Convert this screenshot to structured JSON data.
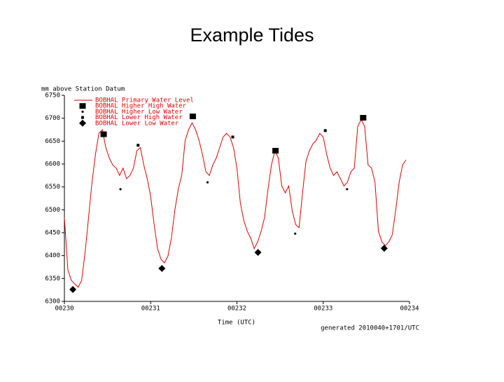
{
  "chart_data": {
    "type": "line",
    "title": "Example Tides",
    "ylabel": "mm above Station Datum",
    "xlabel": "Time (UTC)",
    "annotation": "generated 2010040+1701/UTC",
    "xlim": [
      230,
      234
    ],
    "xticks": [
      {
        "value": 230,
        "label": "00230"
      },
      {
        "value": 231,
        "label": "00231"
      },
      {
        "value": 232,
        "label": "00232"
      },
      {
        "value": 233,
        "label": "00233"
      },
      {
        "value": 234,
        "label": "00234"
      }
    ],
    "ylim": [
      6300,
      6750
    ],
    "yticks": [
      6300,
      6350,
      6400,
      6450,
      6500,
      6550,
      6600,
      6650,
      6700,
      6750
    ],
    "legend": "upper left",
    "series": [
      {
        "name": "BOBHAL Primary Water Level",
        "color": "#e00000",
        "marker": "line",
        "x": [
          230,
          230.04,
          230.08,
          230.12,
          230.16,
          230.2,
          230.24,
          230.28,
          230.32,
          230.36,
          230.4,
          230.44,
          230.48,
          230.52,
          230.56,
          230.6,
          230.64,
          230.68,
          230.72,
          230.76,
          230.8,
          230.84,
          230.88,
          230.92,
          230.96,
          231,
          231.04,
          231.08,
          231.12,
          231.16,
          231.2,
          231.24,
          231.28,
          231.32,
          231.36,
          231.4,
          231.44,
          231.48,
          231.52,
          231.56,
          231.6,
          231.64,
          231.68,
          231.72,
          231.76,
          231.8,
          231.84,
          231.88,
          231.92,
          231.96,
          232,
          232.04,
          232.08,
          232.12,
          232.16,
          232.2,
          232.24,
          232.28,
          232.32,
          232.36,
          232.4,
          232.44,
          232.48,
          232.52,
          232.56,
          232.6,
          232.64,
          232.68,
          232.72,
          232.76,
          232.8,
          232.84,
          232.88,
          232.92,
          232.96,
          233,
          233.04,
          233.08,
          233.12,
          233.16,
          233.2,
          233.24,
          233.28,
          233.32,
          233.36,
          233.4,
          233.44,
          233.48,
          233.52,
          233.56,
          233.6,
          233.64,
          233.68,
          233.72,
          233.76,
          233.8,
          233.84,
          233.88,
          233.92,
          233.96
        ],
        "values": [
          6483,
          6369,
          6346,
          6338,
          6331,
          6346,
          6407,
          6483,
          6560,
          6621,
          6667,
          6675,
          6636,
          6613,
          6598,
          6591,
          6575,
          6591,
          6568,
          6575,
          6591,
          6629,
          6636,
          6598,
          6568,
          6529,
          6468,
          6415,
          6392,
          6384,
          6399,
          6438,
          6499,
          6545,
          6575,
          6652,
          6675,
          6690,
          6675,
          6652,
          6621,
          6583,
          6575,
          6598,
          6613,
          6636,
          6659,
          6667,
          6659,
          6636,
          6591,
          6514,
          6476,
          6453,
          6438,
          6415,
          6430,
          6453,
          6483,
          6545,
          6598,
          6629,
          6613,
          6552,
          6537,
          6552,
          6499,
          6468,
          6461,
          6537,
          6606,
          6629,
          6644,
          6652,
          6667,
          6659,
          6621,
          6591,
          6575,
          6583,
          6568,
          6552,
          6560,
          6583,
          6591,
          6682,
          6697,
          6682,
          6598,
          6591,
          6560,
          6453,
          6430,
          6422,
          6430,
          6445,
          6499,
          6560,
          6598,
          6609
        ]
      },
      {
        "name": "BOBHAL Higher High Water",
        "color": "#000000",
        "marker": "square",
        "x": [
          230.455,
          231.488,
          232.447,
          233.463
        ],
        "values": [
          6665,
          6704,
          6629,
          6701
        ]
      },
      {
        "name": "BOBHAL Higher Low Water",
        "color": "#000000",
        "marker": "dot",
        "x": [
          230.65,
          231.659,
          232.675,
          233.276
        ],
        "values": [
          6545,
          6560,
          6448,
          6545
        ]
      },
      {
        "name": "BOBHAL Lower High Water",
        "color": "#000000",
        "marker": "small-square",
        "x": [
          230.854,
          231.951,
          233.024
        ],
        "values": [
          6641,
          6659,
          6673
        ]
      },
      {
        "name": "BOBHAL Lower Low Water",
        "color": "#000000",
        "marker": "diamond",
        "x": [
          230.098,
          231.13,
          232.244,
          233.707
        ],
        "values": [
          6326,
          6372,
          6407,
          6416
        ]
      }
    ]
  }
}
